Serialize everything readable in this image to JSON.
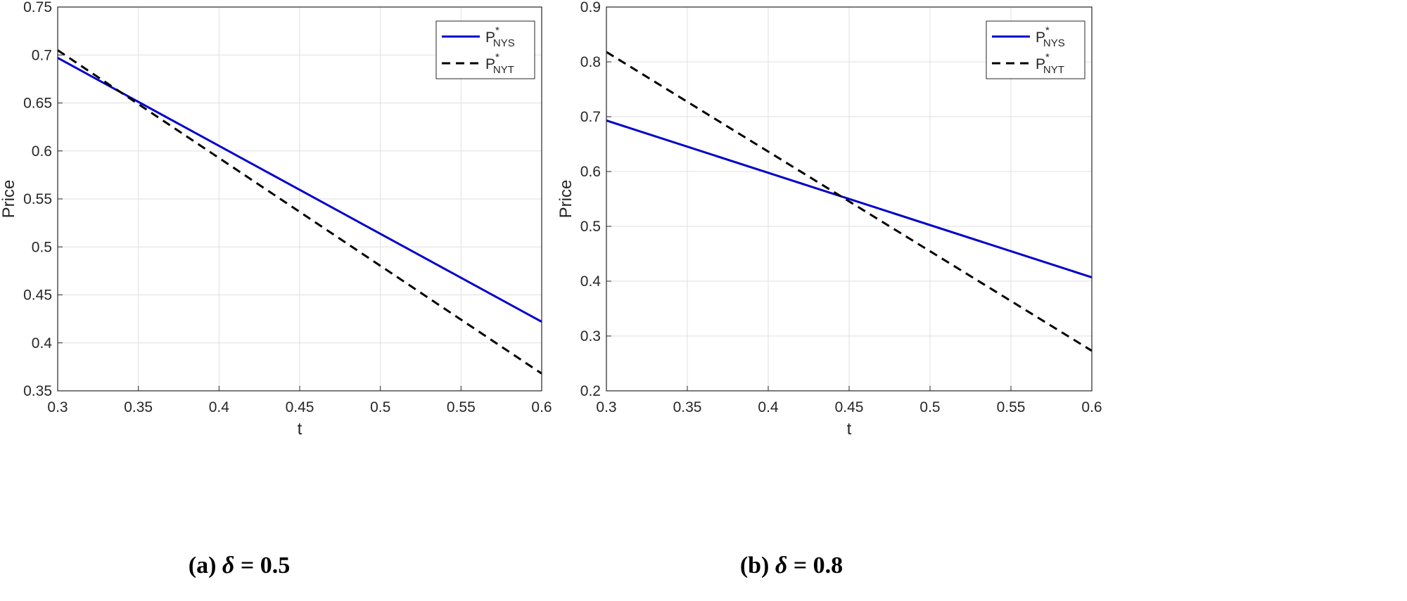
{
  "chart_data": [
    {
      "type": "line",
      "caption": "(a) δ = 0.5",
      "caption_prefix": "(a) ",
      "caption_symbol": "δ",
      "caption_value": " = 0.5",
      "xlabel": "t",
      "ylabel": "Price",
      "xlim": [
        0.3,
        0.6
      ],
      "ylim": [
        0.35,
        0.75
      ],
      "xticks": [
        "0.3",
        "0.35",
        "0.4",
        "0.45",
        "0.5",
        "0.55",
        "0.6"
      ],
      "yticks": [
        "0.35",
        "0.4",
        "0.45",
        "0.5",
        "0.55",
        "0.6",
        "0.65",
        "0.7",
        "0.75"
      ],
      "grid": true,
      "legend_position": "top-right",
      "series": [
        {
          "name": "P*NYS",
          "name_main": "P",
          "name_sup": "*",
          "name_sub": "NYS",
          "color": "#0000cc",
          "style": "solid",
          "x": [
            0.3,
            0.6
          ],
          "y": [
            0.697,
            0.422
          ]
        },
        {
          "name": "P*NYT",
          "name_main": "P",
          "name_sup": "*",
          "name_sub": "NYT",
          "color": "#000000",
          "style": "dashed",
          "x": [
            0.3,
            0.6
          ],
          "y": [
            0.705,
            0.368
          ]
        }
      ]
    },
    {
      "type": "line",
      "caption": "(b) δ = 0.8",
      "caption_prefix": "(b) ",
      "caption_symbol": "δ",
      "caption_value": " = 0.8",
      "xlabel": "t",
      "ylabel": "Price",
      "xlim": [
        0.3,
        0.6
      ],
      "ylim": [
        0.2,
        0.9
      ],
      "xticks": [
        "0.3",
        "0.35",
        "0.4",
        "0.45",
        "0.5",
        "0.55",
        "0.6"
      ],
      "yticks": [
        "0.2",
        "0.3",
        "0.4",
        "0.5",
        "0.6",
        "0.7",
        "0.8",
        "0.9"
      ],
      "grid": true,
      "legend_position": "top-right",
      "series": [
        {
          "name": "P*NYS",
          "name_main": "P",
          "name_sup": "*",
          "name_sub": "NYS",
          "color": "#0000cc",
          "style": "solid",
          "x": [
            0.3,
            0.6
          ],
          "y": [
            0.693,
            0.407
          ]
        },
        {
          "name": "P*NYT",
          "name_main": "P",
          "name_sup": "*",
          "name_sub": "NYT",
          "color": "#000000",
          "style": "dashed",
          "x": [
            0.3,
            0.6
          ],
          "y": [
            0.818,
            0.273
          ]
        }
      ]
    }
  ]
}
